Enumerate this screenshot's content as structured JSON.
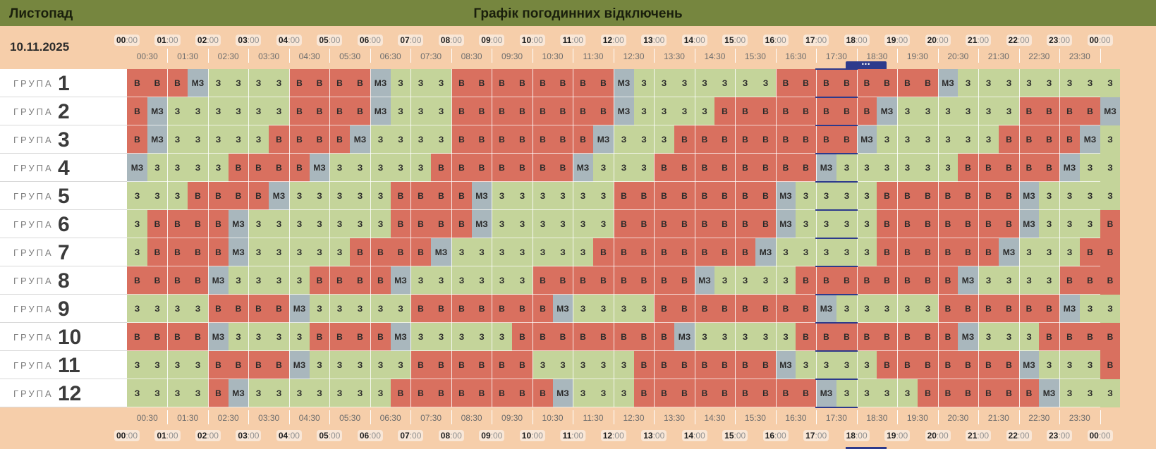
{
  "header": {
    "month": "Листопад",
    "title": "Графік погодинних відключень"
  },
  "date": "10.11.2025",
  "group_word": "ГРУПА",
  "hours": [
    "00",
    "01",
    "02",
    "03",
    "04",
    "05",
    "06",
    "07",
    "08",
    "09",
    "10",
    "11",
    "12",
    "13",
    "14",
    "15",
    "16",
    "17",
    "18",
    "19",
    "20",
    "21",
    "22",
    "23",
    "00"
  ],
  "minute_suffix": ":00",
  "half_ticks": [
    "00:30",
    "01:30",
    "02:30",
    "03:30",
    "04:30",
    "05:30",
    "06:30",
    "07:30",
    "08:30",
    "09:30",
    "10:30",
    "11:30",
    "12:30",
    "13:30",
    "14:30",
    "15:30",
    "16:30",
    "17:30",
    "18:30",
    "19:30",
    "20:30",
    "21:30",
    "22:30",
    "23:30"
  ],
  "now_indicator": "•••",
  "legend_codes": {
    "B": "В",
    "Z": "З",
    "M": "МЗ"
  },
  "colors": {
    "header": "#76863f",
    "off": "#d9705f",
    "on": "#c4d49a",
    "maybe": "#a9b7bd",
    "current": "#2d3a8c",
    "page": "#f6ceaa"
  },
  "current_slot_index": 17,
  "groups": [
    {
      "number": "1",
      "cells": [
        "B",
        "B",
        "B",
        "M",
        "Z",
        "Z",
        "Z",
        "Z",
        "B",
        "B",
        "B",
        "B",
        "M",
        "Z",
        "Z",
        "Z",
        "B",
        "B",
        "B",
        "B",
        "B",
        "B",
        "B",
        "B",
        "M",
        "Z",
        "Z",
        "Z",
        "Z",
        "Z",
        "Z",
        "Z",
        "B",
        "B",
        "B",
        "B",
        "B",
        "B",
        "B",
        "B",
        "M",
        "Z",
        "Z",
        "Z",
        "Z",
        "Z",
        "Z",
        "Z",
        "Z"
      ]
    },
    {
      "number": "2",
      "cells": [
        "B",
        "M",
        "Z",
        "Z",
        "Z",
        "Z",
        "Z",
        "Z",
        "B",
        "B",
        "B",
        "B",
        "M",
        "Z",
        "Z",
        "Z",
        "B",
        "B",
        "B",
        "B",
        "B",
        "B",
        "B",
        "B",
        "M",
        "Z",
        "Z",
        "Z",
        "Z",
        "B",
        "B",
        "B",
        "B",
        "B",
        "B",
        "B",
        "B",
        "M",
        "Z",
        "Z",
        "Z",
        "Z",
        "Z",
        "Z",
        "B",
        "B",
        "B",
        "B",
        "M"
      ]
    },
    {
      "number": "3",
      "cells": [
        "B",
        "M",
        "Z",
        "Z",
        "Z",
        "Z",
        "Z",
        "B",
        "B",
        "B",
        "B",
        "M",
        "Z",
        "Z",
        "Z",
        "Z",
        "B",
        "B",
        "B",
        "B",
        "B",
        "B",
        "B",
        "M",
        "Z",
        "Z",
        "Z",
        "B",
        "B",
        "B",
        "B",
        "B",
        "B",
        "B",
        "B",
        "B",
        "M",
        "Z",
        "Z",
        "Z",
        "Z",
        "Z",
        "Z",
        "B",
        "B",
        "B",
        "B",
        "M",
        "Z"
      ]
    },
    {
      "number": "4",
      "cells": [
        "M",
        "Z",
        "Z",
        "Z",
        "Z",
        "B",
        "B",
        "B",
        "B",
        "M",
        "Z",
        "Z",
        "Z",
        "Z",
        "Z",
        "B",
        "B",
        "B",
        "B",
        "B",
        "B",
        "B",
        "M",
        "Z",
        "Z",
        "Z",
        "B",
        "B",
        "B",
        "B",
        "B",
        "B",
        "B",
        "B",
        "M",
        "Z",
        "Z",
        "Z",
        "Z",
        "Z",
        "Z",
        "B",
        "B",
        "B",
        "B",
        "B",
        "M",
        "Z",
        "Z"
      ]
    },
    {
      "number": "5",
      "cells": [
        "Z",
        "Z",
        "Z",
        "B",
        "B",
        "B",
        "B",
        "M",
        "Z",
        "Z",
        "Z",
        "Z",
        "Z",
        "B",
        "B",
        "B",
        "B",
        "M",
        "Z",
        "Z",
        "Z",
        "Z",
        "Z",
        "Z",
        "B",
        "B",
        "B",
        "B",
        "B",
        "B",
        "B",
        "B",
        "M",
        "Z",
        "Z",
        "Z",
        "Z",
        "B",
        "B",
        "B",
        "B",
        "B",
        "B",
        "B",
        "M",
        "Z",
        "Z",
        "Z",
        "Z"
      ]
    },
    {
      "number": "6",
      "cells": [
        "Z",
        "B",
        "B",
        "B",
        "B",
        "M",
        "Z",
        "Z",
        "Z",
        "Z",
        "Z",
        "Z",
        "Z",
        "B",
        "B",
        "B",
        "B",
        "M",
        "Z",
        "Z",
        "Z",
        "Z",
        "Z",
        "Z",
        "B",
        "B",
        "B",
        "B",
        "B",
        "B",
        "B",
        "B",
        "M",
        "Z",
        "Z",
        "Z",
        "Z",
        "B",
        "B",
        "B",
        "B",
        "B",
        "B",
        "B",
        "M",
        "Z",
        "Z",
        "Z",
        "B"
      ]
    },
    {
      "number": "7",
      "cells": [
        "Z",
        "B",
        "B",
        "B",
        "B",
        "M",
        "Z",
        "Z",
        "Z",
        "Z",
        "Z",
        "B",
        "B",
        "B",
        "B",
        "M",
        "Z",
        "Z",
        "Z",
        "Z",
        "Z",
        "Z",
        "Z",
        "B",
        "B",
        "B",
        "B",
        "B",
        "B",
        "B",
        "B",
        "M",
        "Z",
        "Z",
        "Z",
        "Z",
        "Z",
        "B",
        "B",
        "B",
        "B",
        "B",
        "B",
        "M",
        "Z",
        "Z",
        "Z",
        "B",
        "B"
      ]
    },
    {
      "number": "8",
      "cells": [
        "B",
        "B",
        "B",
        "B",
        "M",
        "Z",
        "Z",
        "Z",
        "Z",
        "B",
        "B",
        "B",
        "B",
        "M",
        "Z",
        "Z",
        "Z",
        "Z",
        "Z",
        "Z",
        "B",
        "B",
        "B",
        "B",
        "B",
        "B",
        "B",
        "B",
        "M",
        "Z",
        "Z",
        "Z",
        "Z",
        "B",
        "B",
        "B",
        "B",
        "B",
        "B",
        "B",
        "B",
        "M",
        "Z",
        "Z",
        "Z",
        "Z",
        "B",
        "B",
        "B"
      ]
    },
    {
      "number": "9",
      "cells": [
        "Z",
        "Z",
        "Z",
        "Z",
        "B",
        "B",
        "B",
        "B",
        "M",
        "Z",
        "Z",
        "Z",
        "Z",
        "Z",
        "B",
        "B",
        "B",
        "B",
        "B",
        "B",
        "B",
        "M",
        "Z",
        "Z",
        "Z",
        "Z",
        "B",
        "B",
        "B",
        "B",
        "B",
        "B",
        "B",
        "B",
        "M",
        "Z",
        "Z",
        "Z",
        "Z",
        "Z",
        "B",
        "B",
        "B",
        "B",
        "B",
        "B",
        "M",
        "Z",
        "Z"
      ]
    },
    {
      "number": "10",
      "cells": [
        "B",
        "B",
        "B",
        "B",
        "M",
        "Z",
        "Z",
        "Z",
        "Z",
        "B",
        "B",
        "B",
        "B",
        "M",
        "Z",
        "Z",
        "Z",
        "Z",
        "Z",
        "B",
        "B",
        "B",
        "B",
        "B",
        "B",
        "B",
        "B",
        "M",
        "Z",
        "Z",
        "Z",
        "Z",
        "Z",
        "B",
        "B",
        "B",
        "B",
        "B",
        "B",
        "B",
        "B",
        "M",
        "Z",
        "Z",
        "Z",
        "B",
        "B",
        "B",
        "B"
      ]
    },
    {
      "number": "11",
      "cells": [
        "Z",
        "Z",
        "Z",
        "Z",
        "B",
        "B",
        "B",
        "B",
        "M",
        "Z",
        "Z",
        "Z",
        "Z",
        "Z",
        "B",
        "B",
        "B",
        "B",
        "B",
        "B",
        "Z",
        "Z",
        "Z",
        "Z",
        "Z",
        "B",
        "B",
        "B",
        "B",
        "B",
        "B",
        "B",
        "M",
        "Z",
        "Z",
        "Z",
        "Z",
        "B",
        "B",
        "B",
        "B",
        "B",
        "B",
        "B",
        "M",
        "Z",
        "Z",
        "Z",
        "B"
      ]
    },
    {
      "number": "12",
      "cells": [
        "Z",
        "Z",
        "Z",
        "Z",
        "B",
        "M",
        "Z",
        "Z",
        "Z",
        "Z",
        "Z",
        "Z",
        "Z",
        "B",
        "B",
        "B",
        "B",
        "B",
        "B",
        "B",
        "B",
        "M",
        "Z",
        "Z",
        "Z",
        "B",
        "B",
        "B",
        "B",
        "B",
        "B",
        "B",
        "B",
        "B",
        "M",
        "Z",
        "Z",
        "Z",
        "Z",
        "B",
        "B",
        "B",
        "B",
        "B",
        "B",
        "M",
        "Z",
        "Z",
        "Z"
      ]
    }
  ]
}
